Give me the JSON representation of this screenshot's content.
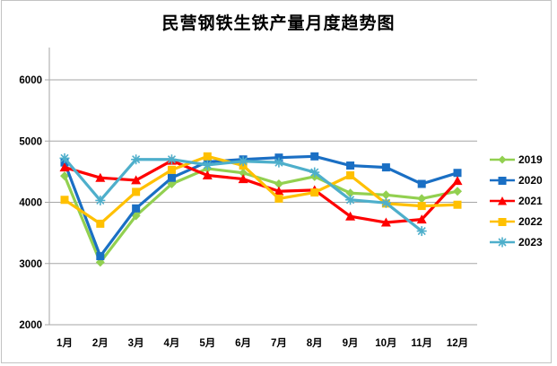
{
  "chart_data": {
    "type": "line",
    "title": "民营钢铁生铁产量月度趋势图",
    "categories": [
      "1月",
      "2月",
      "3月",
      "4月",
      "5月",
      "6月",
      "7月",
      "8月",
      "9月",
      "10月",
      "11月",
      "12月"
    ],
    "series": [
      {
        "name": "2019",
        "color": "#92D050",
        "marker": "diamond",
        "values": [
          4430,
          3020,
          3780,
          4300,
          4550,
          4480,
          4300,
          4420,
          4150,
          4120,
          4060,
          4180
        ]
      },
      {
        "name": "2020",
        "color": "#1A6FC4",
        "marker": "square",
        "values": [
          4650,
          3120,
          3900,
          4400,
          4660,
          4700,
          4730,
          4750,
          4600,
          4570,
          4300,
          4480
        ]
      },
      {
        "name": "2021",
        "color": "#FE0000",
        "marker": "triangle",
        "values": [
          4570,
          4400,
          4360,
          4680,
          4440,
          4380,
          4180,
          4200,
          3770,
          3670,
          3720,
          4350
        ]
      },
      {
        "name": "2022",
        "color": "#FFC000",
        "marker": "square",
        "values": [
          4040,
          3650,
          4170,
          4530,
          4750,
          4600,
          4060,
          4160,
          4440,
          3980,
          3940,
          3960
        ]
      },
      {
        "name": "2023",
        "color": "#4EAFCB",
        "marker": "asterisk",
        "values": [
          4720,
          4030,
          4700,
          4700,
          4610,
          4670,
          4650,
          4490,
          4040,
          3990,
          3530,
          null
        ]
      }
    ],
    "xlabel": "",
    "ylabel": "",
    "ylim": [
      2000,
      6500
    ],
    "yticks": [
      2000,
      3000,
      4000,
      5000,
      6000
    ],
    "grid": true,
    "legend_position": "right",
    "axis_color": "#A6A6A6",
    "gridline_color": "#A6A6A6"
  }
}
